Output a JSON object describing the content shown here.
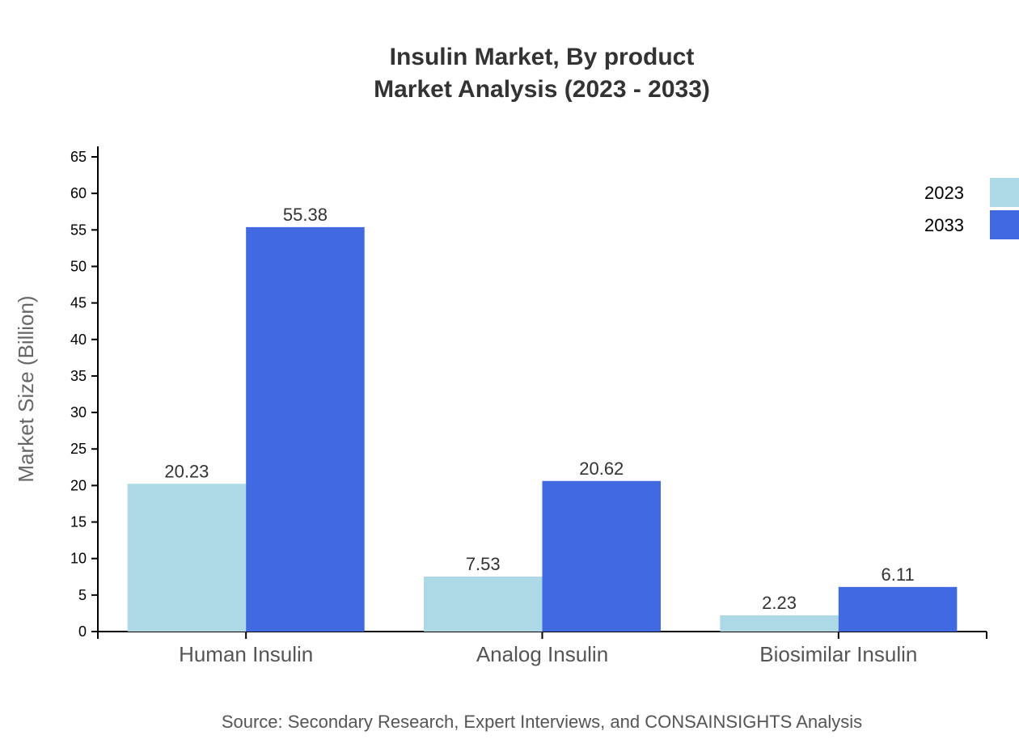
{
  "chart_data": {
    "type": "bar",
    "title": "Insulin Market, By product",
    "subtitle": "Market Analysis (2023 - 2033)",
    "xlabel": "",
    "ylabel": "Market Size (Billion)",
    "ylim": [
      0,
      65
    ],
    "yticks": [
      0,
      5,
      10,
      15,
      20,
      25,
      30,
      35,
      40,
      45,
      50,
      55,
      60,
      65
    ],
    "categories": [
      "Human Insulin",
      "Analog Insulin",
      "Biosimilar Insulin"
    ],
    "series": [
      {
        "name": "2023",
        "color": "#add8e6",
        "values": [
          20.23,
          7.53,
          2.23
        ]
      },
      {
        "name": "2033",
        "color": "#4169e1",
        "values": [
          55.38,
          20.62,
          6.11
        ]
      }
    ],
    "legend_position": "top-right",
    "grid": false,
    "source": "Source: Secondary Research, Expert Interviews, and CONSAINSIGHTS Analysis"
  }
}
